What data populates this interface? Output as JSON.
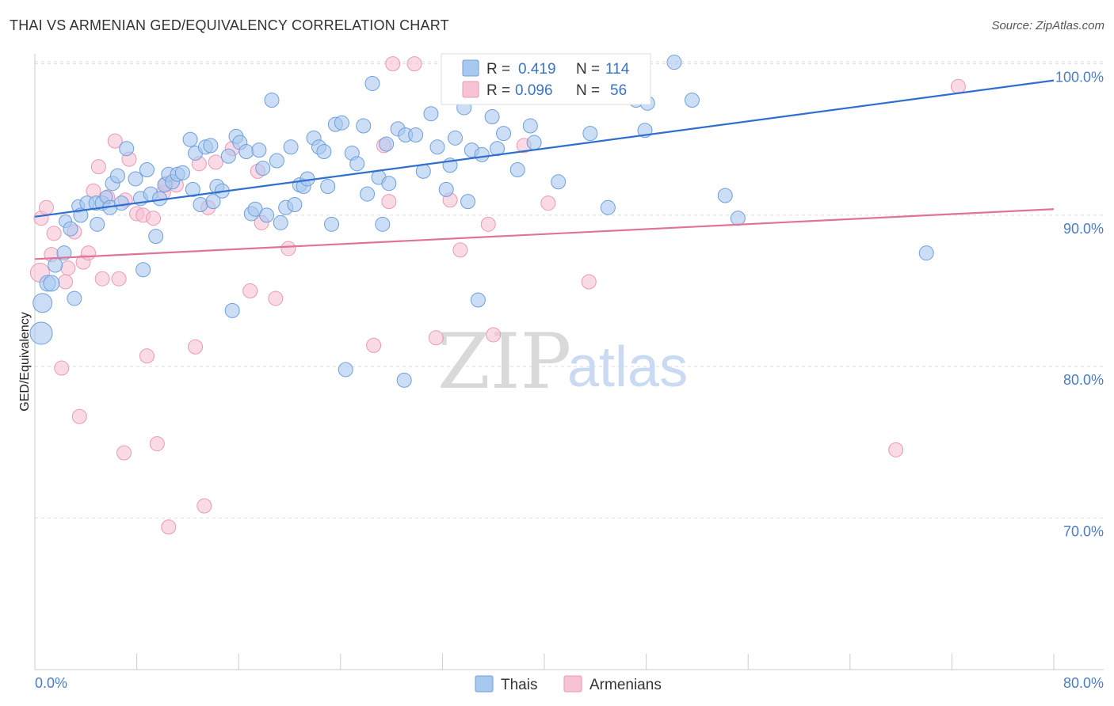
{
  "header": {
    "title": "THAI VS ARMENIAN GED/EQUIVALENCY CORRELATION CHART",
    "source": "Source: ZipAtlas.com"
  },
  "legend": {
    "rows": [
      {
        "r_label": "R =",
        "r_value": "0.419",
        "n_label": "N =",
        "n_value": "114"
      },
      {
        "r_label": "R =",
        "r_value": "0.096",
        "n_label": "N =",
        "n_value": "56"
      }
    ]
  },
  "bottom_legend": [
    "Thais",
    "Armenians"
  ],
  "watermark": {
    "zip": "ZIP",
    "atlas": "atlas"
  },
  "colors": {
    "thai_fill": "#a9c8f0",
    "thai_stroke": "#6f9fd8",
    "thai_line": "#2f6fce",
    "arm_fill": "#f7c2d3",
    "arm_stroke": "#e99ab4",
    "arm_line": "#e07398",
    "grid": "#dddddd",
    "axis_text": "#4a7cc7"
  },
  "chart_data": {
    "type": "scatter",
    "title": "THAI VS ARMENIAN GED/EQUIVALENCY CORRELATION CHART",
    "xlabel": "",
    "ylabel": "GED/Equivalency",
    "xlim": [
      0,
      80
    ],
    "ylim": [
      60,
      102
    ],
    "x_tick_labels": [
      "0.0%",
      "80.0%"
    ],
    "y_ticks": [
      70,
      80,
      90,
      100
    ],
    "y_tick_labels": [
      "70.0%",
      "80.0%",
      "90.0%",
      "100.0%"
    ],
    "grid": true,
    "legend_position": "top-center",
    "series": [
      {
        "name": "Thais",
        "R": 0.419,
        "N": 114,
        "trend": [
          [
            0,
            89.9
          ],
          [
            80,
            98.9
          ]
        ],
        "points": [
          [
            0.5,
            82.2,
            14
          ],
          [
            0.6,
            84.2,
            12
          ],
          [
            1,
            85.5,
            10
          ],
          [
            1.3,
            85.5,
            10
          ],
          [
            1.6,
            86.7,
            9
          ],
          [
            2.3,
            87.5,
            9
          ],
          [
            2.4,
            89.6,
            8
          ],
          [
            2.8,
            89.1,
            9
          ],
          [
            3.1,
            84.5,
            9
          ],
          [
            3.4,
            90.6,
            8
          ],
          [
            3.6,
            90,
            9
          ],
          [
            4.1,
            90.8,
            9
          ],
          [
            4.8,
            90.8,
            9
          ],
          [
            4.9,
            89.4,
            9
          ],
          [
            5.3,
            90.8,
            9
          ],
          [
            5.6,
            91.2,
            8
          ],
          [
            5.9,
            90.5,
            9
          ],
          [
            6.1,
            92.1,
            9
          ],
          [
            6.5,
            92.6,
            9
          ],
          [
            6.8,
            90.8,
            9
          ],
          [
            7.2,
            94.4,
            9
          ],
          [
            7.9,
            92.4,
            9
          ],
          [
            8.3,
            91.1,
            9
          ],
          [
            8.5,
            86.4,
            9
          ],
          [
            8.8,
            93,
            9
          ],
          [
            9.1,
            91.4,
            9
          ],
          [
            9.5,
            88.6,
            9
          ],
          [
            9.8,
            91.1,
            9
          ],
          [
            10.2,
            92,
            9
          ],
          [
            10.5,
            92.7,
            9
          ],
          [
            10.8,
            92.2,
            9
          ],
          [
            11.2,
            92.7,
            9
          ],
          [
            11.6,
            92.8,
            9
          ],
          [
            12.2,
            95,
            9
          ],
          [
            12.4,
            91.7,
            9
          ],
          [
            12.6,
            94.1,
            9
          ],
          [
            13,
            90.7,
            9
          ],
          [
            13.4,
            94.5,
            9
          ],
          [
            13.8,
            94.6,
            9
          ],
          [
            14,
            90.9,
            9
          ],
          [
            14.3,
            91.9,
            9
          ],
          [
            14.7,
            91.6,
            9
          ],
          [
            15.2,
            93.9,
            9
          ],
          [
            15.5,
            83.7,
            9
          ],
          [
            15.8,
            95.2,
            9
          ],
          [
            16.1,
            94.8,
            9
          ],
          [
            16.6,
            94.2,
            9
          ],
          [
            17,
            90.1,
            9
          ],
          [
            17.3,
            90.4,
            9
          ],
          [
            17.6,
            94.3,
            9
          ],
          [
            17.9,
            93.1,
            9
          ],
          [
            18.2,
            90,
            9
          ],
          [
            18.6,
            97.6,
            9
          ],
          [
            19,
            93.6,
            9
          ],
          [
            19.3,
            89.5,
            9
          ],
          [
            19.7,
            90.5,
            9
          ],
          [
            20.1,
            94.5,
            9
          ],
          [
            20.4,
            90.7,
            9
          ],
          [
            20.8,
            92,
            9
          ],
          [
            21.1,
            91.9,
            9
          ],
          [
            21.4,
            92.4,
            9
          ],
          [
            21.9,
            95.1,
            9
          ],
          [
            22.3,
            94.5,
            9
          ],
          [
            22.7,
            94.2,
            9
          ],
          [
            23,
            91.9,
            9
          ],
          [
            23.3,
            89.4,
            9
          ],
          [
            23.6,
            96,
            9
          ],
          [
            24.1,
            96.1,
            9
          ],
          [
            24.4,
            79.8,
            9
          ],
          [
            24.9,
            94.1,
            9
          ],
          [
            25.3,
            93.4,
            9
          ],
          [
            25.8,
            95.9,
            9
          ],
          [
            26.1,
            91.4,
            9
          ],
          [
            26.5,
            98.7,
            9
          ],
          [
            27,
            92.5,
            9
          ],
          [
            27.3,
            89.4,
            9
          ],
          [
            27.6,
            94.7,
            9
          ],
          [
            27.8,
            92.1,
            9
          ],
          [
            28.5,
            95.7,
            9
          ],
          [
            29.1,
            95.3,
            9
          ],
          [
            29,
            79.1,
            9
          ],
          [
            29.9,
            95.3,
            9
          ],
          [
            30.5,
            92.9,
            9
          ],
          [
            31.1,
            96.7,
            9
          ],
          [
            31.6,
            94.5,
            9
          ],
          [
            32.3,
            91.7,
            9
          ],
          [
            32.6,
            93.3,
            9
          ],
          [
            33,
            95.1,
            9
          ],
          [
            33.4,
            98.2,
            9
          ],
          [
            33.7,
            97.1,
            9
          ],
          [
            34,
            90.9,
            9
          ],
          [
            34.3,
            94.3,
            9
          ],
          [
            34.8,
            84.4,
            9
          ],
          [
            35.1,
            94,
            9
          ],
          [
            35.9,
            96.5,
            9
          ],
          [
            36.3,
            94.4,
            9
          ],
          [
            36.8,
            95.4,
            9
          ],
          [
            37.2,
            98.3,
            9
          ],
          [
            37.9,
            93,
            9
          ],
          [
            38.9,
            95.9,
            9
          ],
          [
            39.2,
            94.8,
            9
          ],
          [
            41.1,
            92.2,
            9
          ],
          [
            43.6,
            95.4,
            9
          ],
          [
            45,
            90.5,
            9
          ],
          [
            47.2,
            97.6,
            9
          ],
          [
            47.6,
            98.1,
            9
          ],
          [
            48.1,
            97.4,
            9
          ],
          [
            47.9,
            95.6,
            9
          ],
          [
            50.2,
            100.1,
            9
          ],
          [
            51.6,
            97.6,
            9
          ],
          [
            54.2,
            91.3,
            9
          ],
          [
            55.2,
            89.8,
            9
          ],
          [
            70,
            87.5,
            9
          ]
        ]
      },
      {
        "name": "Armenians",
        "R": 0.096,
        "N": 56,
        "trend": [
          [
            0,
            87.1
          ],
          [
            80,
            90.4
          ]
        ],
        "points": [
          [
            0.4,
            86.2,
            12
          ],
          [
            0.5,
            89.8,
            9
          ],
          [
            0.9,
            90.5,
            9
          ],
          [
            1.3,
            87.4,
            9
          ],
          [
            1.5,
            88.8,
            9
          ],
          [
            2.1,
            79.9,
            9
          ],
          [
            2.4,
            85.6,
            9
          ],
          [
            2.6,
            86.5,
            9
          ],
          [
            3.1,
            88.9,
            9
          ],
          [
            3.5,
            76.7,
            9
          ],
          [
            3.8,
            86.9,
            9
          ],
          [
            4.2,
            87.5,
            9
          ],
          [
            4.6,
            91.6,
            9
          ],
          [
            5,
            93.2,
            9
          ],
          [
            5.3,
            85.8,
            9
          ],
          [
            5.7,
            91.2,
            9
          ],
          [
            6.3,
            94.9,
            9
          ],
          [
            6.6,
            85.8,
            9
          ],
          [
            7,
            74.3,
            9
          ],
          [
            7.1,
            91,
            9
          ],
          [
            7.4,
            93.7,
            9
          ],
          [
            8,
            90.1,
            9
          ],
          [
            8.5,
            90,
            9
          ],
          [
            8.8,
            80.7,
            9
          ],
          [
            9.3,
            89.8,
            9
          ],
          [
            9.6,
            74.9,
            9
          ],
          [
            10.1,
            91.5,
            9
          ],
          [
            10.3,
            92.1,
            9
          ],
          [
            10.5,
            69.4,
            9
          ],
          [
            11.1,
            92,
            9
          ],
          [
            12.6,
            81.3,
            9
          ],
          [
            12.9,
            93.4,
            9
          ],
          [
            13.3,
            70.8,
            9
          ],
          [
            13.6,
            90.5,
            9
          ],
          [
            14.2,
            93.5,
            9
          ],
          [
            15.5,
            94.4,
            9
          ],
          [
            16.9,
            85,
            9
          ],
          [
            17.5,
            92.9,
            9
          ],
          [
            17.8,
            89.5,
            9
          ],
          [
            18.9,
            84.5,
            9
          ],
          [
            19.9,
            87.8,
            9
          ],
          [
            26.6,
            81.4,
            9
          ],
          [
            27.4,
            94.6,
            9
          ],
          [
            27.8,
            90.9,
            9
          ],
          [
            28.1,
            100,
            9
          ],
          [
            29.8,
            100,
            9
          ],
          [
            31.5,
            81.9,
            9
          ],
          [
            32.6,
            91,
            9
          ],
          [
            33.4,
            87.7,
            9
          ],
          [
            35.6,
            89.4,
            9
          ],
          [
            36,
            82.1,
            9
          ],
          [
            38.4,
            94.6,
            9
          ],
          [
            40.3,
            90.8,
            9
          ],
          [
            43.5,
            85.6,
            9
          ],
          [
            67.6,
            74.5,
            9
          ],
          [
            72.5,
            98.5,
            9
          ]
        ]
      }
    ]
  }
}
